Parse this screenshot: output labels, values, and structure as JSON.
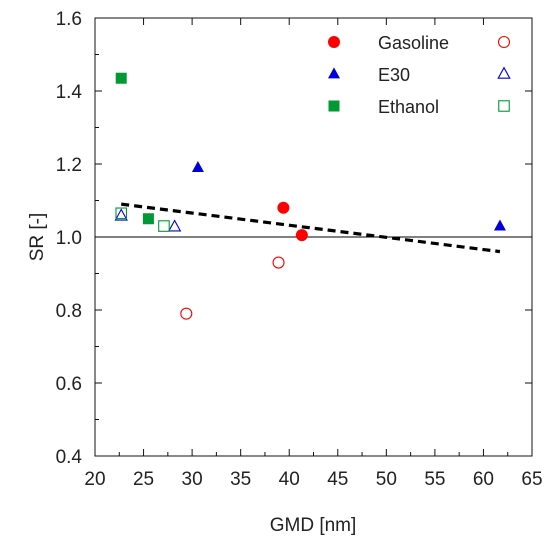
{
  "chart_data": {
    "type": "scatter",
    "title": "",
    "xlabel": "GMD [nm]",
    "ylabel": "SR [-]",
    "xlim": [
      20,
      65
    ],
    "ylim": [
      0.4,
      1.6
    ],
    "xticks": [
      20,
      25,
      30,
      35,
      40,
      45,
      50,
      55,
      60,
      65
    ],
    "yticks": [
      0.4,
      0.6,
      0.8,
      1.0,
      1.2,
      1.4,
      1.6
    ],
    "ytick_labels": [
      "0.4",
      "0.6",
      "0.8",
      "1.0",
      "1.2",
      "1.4",
      "1.6"
    ],
    "grid": false,
    "legend_position": "top-right",
    "reference_line": {
      "y": 1.0,
      "color": "#000000",
      "style": "solid"
    },
    "trend_line": {
      "x": [
        22.7,
        61.7
      ],
      "y": [
        1.09,
        0.96
      ],
      "color": "#000000",
      "style": "dashed"
    },
    "series": [
      {
        "name": "Gasoline",
        "marker": "circle",
        "filled": true,
        "color": "#ff0000",
        "points": [
          {
            "x": 39.4,
            "y": 1.08
          },
          {
            "x": 41.3,
            "y": 1.005
          }
        ]
      },
      {
        "name": "Gasoline",
        "marker": "circle",
        "filled": false,
        "color": "#ff0000",
        "points": [
          {
            "x": 29.4,
            "y": 0.79
          },
          {
            "x": 38.9,
            "y": 0.93
          }
        ]
      },
      {
        "name": "E30",
        "marker": "triangle",
        "filled": true,
        "color": "#0000dd",
        "points": [
          {
            "x": 30.6,
            "y": 1.19
          },
          {
            "x": 61.7,
            "y": 1.03
          }
        ]
      },
      {
        "name": "E30",
        "marker": "triangle",
        "filled": false,
        "color": "#0000dd",
        "points": [
          {
            "x": 22.7,
            "y": 1.058
          },
          {
            "x": 28.2,
            "y": 1.028
          }
        ]
      },
      {
        "name": "Ethanol",
        "marker": "square",
        "filled": true,
        "color": "#009933",
        "points": [
          {
            "x": 22.7,
            "y": 1.435
          },
          {
            "x": 25.5,
            "y": 1.05
          }
        ]
      },
      {
        "name": "Ethanol",
        "marker": "square",
        "filled": false,
        "color": "#009933",
        "points": [
          {
            "x": 22.7,
            "y": 1.065
          },
          {
            "x": 27.1,
            "y": 1.03
          }
        ]
      }
    ],
    "legend": [
      {
        "label": "Gasoline",
        "marker": "circle",
        "color": "#ff0000"
      },
      {
        "label": "E30",
        "marker": "triangle",
        "color": "#0000dd"
      },
      {
        "label": "Ethanol",
        "marker": "square",
        "color": "#009933"
      }
    ]
  }
}
